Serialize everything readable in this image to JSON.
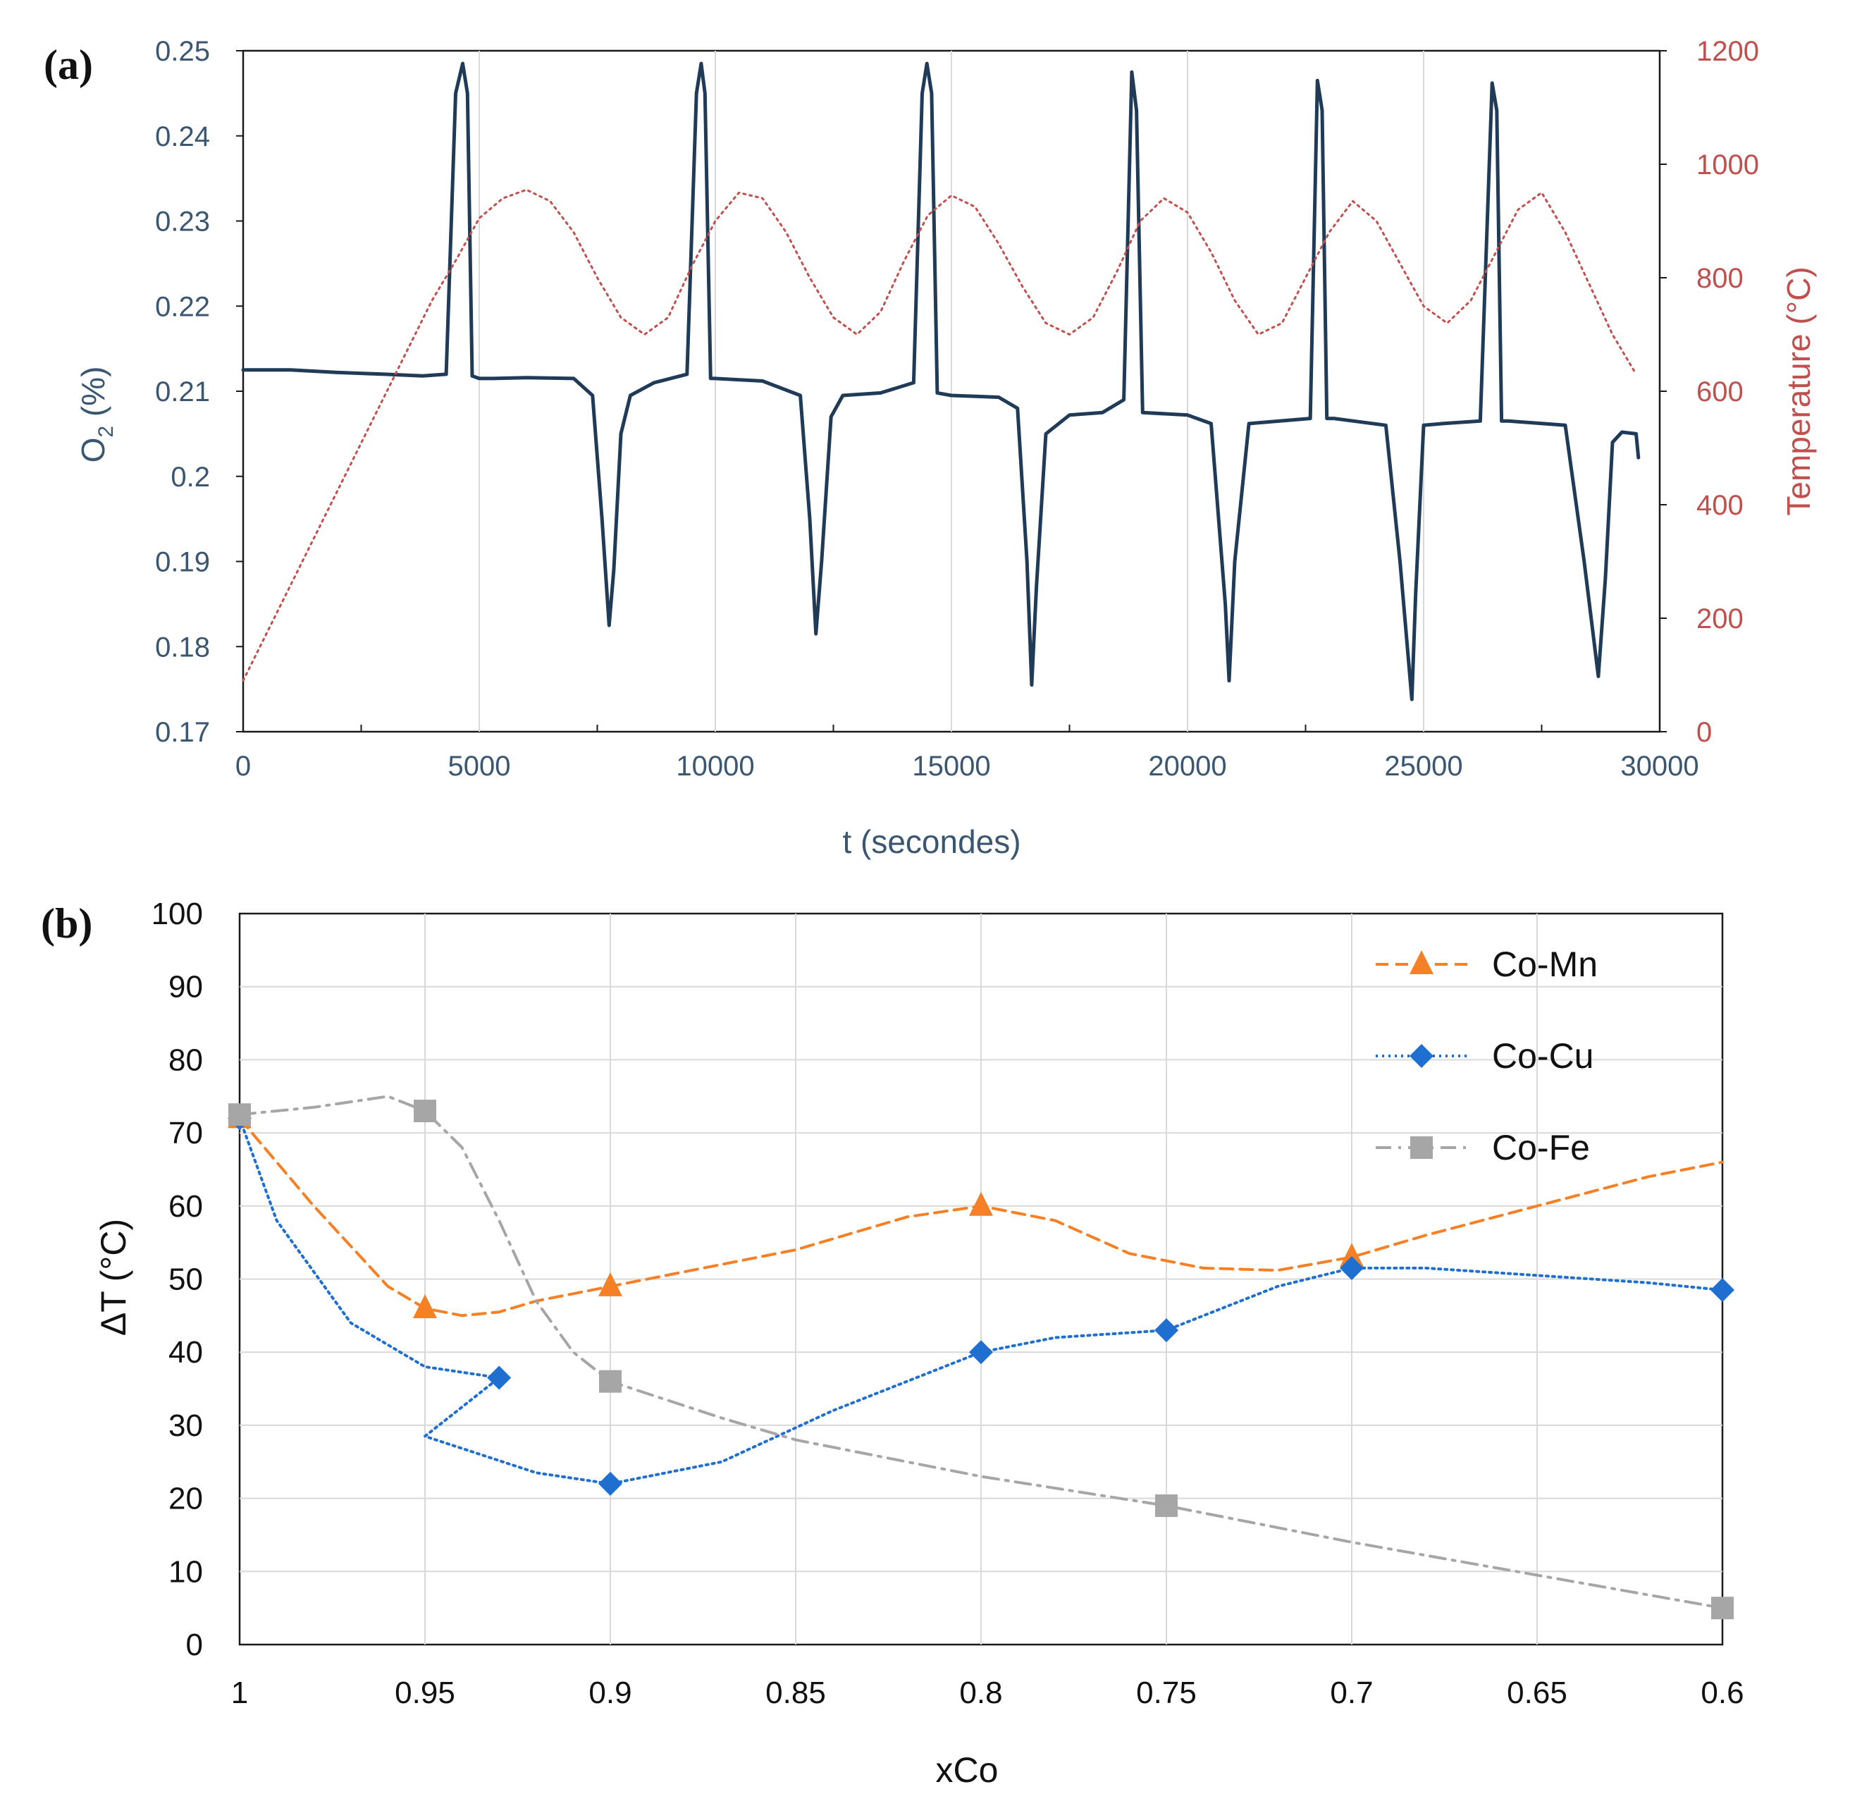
{
  "chart_data": [
    {
      "id": "a",
      "type": "line",
      "panel_label": "(a)",
      "panel_letter": "a",
      "xlabel": "t (secondes)",
      "xlim": [
        0,
        30000
      ],
      "xticks": [
        0,
        5000,
        10000,
        15000,
        20000,
        25000,
        30000
      ],
      "xtick_labels": [
        "0",
        "5000",
        "10000",
        "15000",
        "20000",
        "25000",
        "30000"
      ],
      "ylabel": "O2 (%)",
      "ylabel_main": "O",
      "ylabel_sub": "2",
      "ylabel_tail": " (%)",
      "ylim": [
        0.17,
        0.25
      ],
      "yticks": [
        0.17,
        0.18,
        0.19,
        0.2,
        0.21,
        0.22,
        0.23,
        0.24,
        0.25
      ],
      "ytick_labels": [
        "0.17",
        "0.18",
        "0.19",
        "0.2",
        "0.21",
        "0.22",
        "0.23",
        "0.24",
        "0.25"
      ],
      "y2label": "Temperature (°C)",
      "y2lim": [
        0,
        1200
      ],
      "y2ticks": [
        0,
        200,
        400,
        600,
        800,
        1000,
        1200
      ],
      "y2tick_labels": [
        "0",
        "200",
        "400",
        "600",
        "800",
        "1000",
        "1200"
      ],
      "grid": "vertical",
      "series": [
        {
          "name": "O2",
          "axis": "left",
          "color": "#1f3b57",
          "style": "solid",
          "x": [
            0,
            1000,
            2000,
            3000,
            3800,
            4300,
            4500,
            4650,
            4750,
            4850,
            5000,
            5300,
            6000,
            7000,
            7400,
            7600,
            7750,
            7850,
            8000,
            8200,
            8700,
            9400,
            9600,
            9700,
            9780,
            9900,
            10000,
            11000,
            11800,
            12000,
            12130,
            12250,
            12450,
            12700,
            13500,
            14200,
            14380,
            14480,
            14580,
            14700,
            15000,
            16000,
            16400,
            16600,
            16700,
            16800,
            17000,
            17500,
            18200,
            18650,
            18820,
            18920,
            19050,
            20000,
            20500,
            20800,
            20880,
            21000,
            21300,
            22600,
            22750,
            22850,
            22950,
            23100,
            24200,
            24500,
            24750,
            24830,
            25000,
            25400,
            26200,
            26450,
            26550,
            26650,
            26800,
            28000,
            28400,
            28700,
            28850,
            29000,
            29200,
            29500,
            29550
          ],
          "y": [
            0.2125,
            0.2125,
            0.2122,
            0.212,
            0.2118,
            0.212,
            0.245,
            0.2485,
            0.245,
            0.2118,
            0.2115,
            0.2115,
            0.2116,
            0.2115,
            0.2095,
            0.195,
            0.1825,
            0.189,
            0.205,
            0.2095,
            0.211,
            0.212,
            0.245,
            0.2485,
            0.245,
            0.2115,
            0.2115,
            0.2112,
            0.2095,
            0.195,
            0.1815,
            0.19,
            0.207,
            0.2095,
            0.2098,
            0.211,
            0.245,
            0.2485,
            0.245,
            0.2098,
            0.2095,
            0.2093,
            0.208,
            0.19,
            0.1755,
            0.187,
            0.205,
            0.2072,
            0.2075,
            0.209,
            0.2475,
            0.243,
            0.2075,
            0.2072,
            0.2062,
            0.185,
            0.176,
            0.19,
            0.2062,
            0.2068,
            0.2465,
            0.243,
            0.2068,
            0.2068,
            0.206,
            0.19,
            0.1738,
            0.186,
            0.206,
            0.2062,
            0.2065,
            0.2462,
            0.243,
            0.2065,
            0.2065,
            0.206,
            0.19,
            0.1765,
            0.188,
            0.204,
            0.2052,
            0.205,
            0.2022
          ]
        },
        {
          "name": "Temperature",
          "axis": "right",
          "color": "#c0504d",
          "style": "dotted",
          "x": [
            0,
            4000,
            4500,
            5000,
            5500,
            6000,
            6500,
            7000,
            7500,
            8000,
            8500,
            9000,
            9500,
            10000,
            10500,
            11000,
            11500,
            12000,
            12500,
            13000,
            13500,
            14000,
            14500,
            15000,
            15500,
            16000,
            16500,
            17000,
            17500,
            18000,
            18500,
            19000,
            19500,
            20000,
            20500,
            21000,
            21500,
            22000,
            22500,
            23000,
            23500,
            24000,
            24500,
            25000,
            25500,
            26000,
            26500,
            27000,
            27500,
            28000,
            28500,
            29000,
            29500
          ],
          "y": [
            90,
            760,
            830,
            905,
            940,
            955,
            935,
            880,
            800,
            730,
            700,
            730,
            820,
            900,
            950,
            940,
            880,
            800,
            730,
            700,
            740,
            830,
            910,
            945,
            925,
            860,
            785,
            720,
            700,
            730,
            810,
            900,
            940,
            915,
            845,
            760,
            700,
            720,
            800,
            880,
            935,
            900,
            825,
            750,
            720,
            760,
            840,
            920,
            950,
            880,
            790,
            700,
            630
          ]
        }
      ]
    },
    {
      "id": "b",
      "type": "line",
      "panel_label": "(b)",
      "panel_letter": "b",
      "xlabel": "xCo",
      "xlim": [
        1.0,
        0.6
      ],
      "x_reversed": true,
      "xticks": [
        1.0,
        0.95,
        0.9,
        0.85,
        0.8,
        0.75,
        0.7,
        0.65,
        0.6
      ],
      "xtick_labels": [
        "1",
        "0.95",
        "0.9",
        "0.85",
        "0.8",
        "0.75",
        "0.7",
        "0.65",
        "0.6"
      ],
      "ylabel": "ΔT (°C)",
      "ylim": [
        0,
        100
      ],
      "yticks": [
        0,
        10,
        20,
        30,
        40,
        50,
        60,
        70,
        80,
        90,
        100
      ],
      "ytick_labels": [
        "0",
        "10",
        "20",
        "30",
        "40",
        "50",
        "60",
        "70",
        "80",
        "90",
        "100"
      ],
      "grid": "both",
      "legend_position": "top-right",
      "series": [
        {
          "name": "Co-Mn",
          "color": "#f58025",
          "marker": "triangle",
          "style": "dashed",
          "x": [
            1.0,
            0.95,
            0.9,
            0.8,
            0.7
          ],
          "y": [
            72,
            46,
            49,
            60,
            53
          ],
          "curve": [
            [
              1.0,
              72
            ],
            [
              0.98,
              60
            ],
            [
              0.96,
              49
            ],
            [
              0.95,
              46
            ],
            [
              0.94,
              45
            ],
            [
              0.93,
              45.5
            ],
            [
              0.92,
              47
            ],
            [
              0.9,
              49
            ],
            [
              0.85,
              54
            ],
            [
              0.82,
              58.5
            ],
            [
              0.8,
              60
            ],
            [
              0.78,
              58
            ],
            [
              0.76,
              53.5
            ],
            [
              0.74,
              51.5
            ],
            [
              0.72,
              51.2
            ],
            [
              0.7,
              53
            ],
            [
              0.68,
              56
            ],
            [
              0.65,
              60
            ],
            [
              0.62,
              64
            ],
            [
              0.6,
              66
            ]
          ]
        },
        {
          "name": "Co-Cu",
          "color": "#1f6fd0",
          "marker": "diamond",
          "style": "dotted",
          "x": [
            1.0,
            0.93,
            0.9,
            0.8,
            0.75,
            0.7,
            0.6
          ],
          "y": [
            72,
            36.5,
            22,
            40,
            43,
            51.5,
            48.5
          ],
          "curve": [
            [
              1.0,
              72
            ],
            [
              0.99,
              58
            ],
            [
              0.97,
              44
            ],
            [
              0.95,
              38
            ],
            [
              0.93,
              36.5
            ],
            [
              0.95,
              28.5
            ],
            [
              0.92,
              23.5
            ],
            [
              0.9,
              22
            ],
            [
              0.87,
              25
            ],
            [
              0.84,
              32
            ],
            [
              0.8,
              40
            ],
            [
              0.78,
              42
            ],
            [
              0.75,
              43
            ],
            [
              0.72,
              49
            ],
            [
              0.7,
              51.5
            ],
            [
              0.68,
              51.5
            ],
            [
              0.65,
              50.5
            ],
            [
              0.62,
              49.5
            ],
            [
              0.6,
              48.5
            ]
          ]
        },
        {
          "name": "Co-Fe",
          "color": "#a6a6a6",
          "marker": "square",
          "style": "dashdot",
          "x": [
            1.0,
            0.95,
            0.9,
            0.75,
            0.6
          ],
          "y": [
            72.5,
            73,
            36,
            19,
            5
          ],
          "curve": [
            [
              1.0,
              72.5
            ],
            [
              0.98,
              73.5
            ],
            [
              0.96,
              75
            ],
            [
              0.95,
              73
            ],
            [
              0.94,
              68
            ],
            [
              0.93,
              58
            ],
            [
              0.92,
              47
            ],
            [
              0.91,
              40
            ],
            [
              0.9,
              36
            ],
            [
              0.87,
              31
            ],
            [
              0.85,
              28
            ],
            [
              0.8,
              23
            ],
            [
              0.75,
              19
            ],
            [
              0.7,
              14
            ],
            [
              0.65,
              9.5
            ],
            [
              0.6,
              5
            ]
          ]
        }
      ]
    }
  ]
}
